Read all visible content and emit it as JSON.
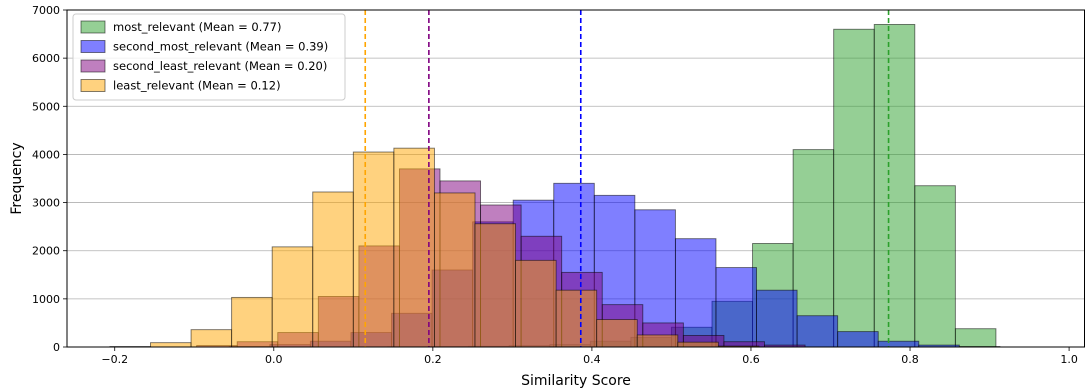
{
  "chart_data": {
    "type": "histogram",
    "title": "",
    "xlabel": "Similarity Score",
    "ylabel": "Frequency",
    "xlim": [
      -0.26,
      1.02
    ],
    "ylim": [
      0,
      7000
    ],
    "xticks": [
      -0.2,
      0.0,
      0.2,
      0.4,
      0.6,
      0.8,
      1.0
    ],
    "xtick_labels": [
      "−0.2",
      "0.0",
      "0.2",
      "0.4",
      "0.6",
      "0.8",
      "1.0"
    ],
    "yticks": [
      0,
      1000,
      2000,
      3000,
      4000,
      5000,
      6000,
      7000
    ],
    "ytick_labels": [
      "0",
      "1000",
      "2000",
      "3000",
      "4000",
      "5000",
      "6000",
      "7000"
    ],
    "grid": "horizontal",
    "legend_position": "top-left",
    "series": [
      {
        "name": "most_relevant (Mean = 0.77)",
        "color": "#2ca02c",
        "mean": 0.773,
        "bin_edges": [
          0.143,
          0.194,
          0.245,
          0.296,
          0.347,
          0.398,
          0.449,
          0.5,
          0.551,
          0.602,
          0.653,
          0.704,
          0.755,
          0.806,
          0.857,
          0.908,
          0.959
        ],
        "counts": [
          5,
          10,
          15,
          30,
          50,
          120,
          200,
          410,
          950,
          2150,
          4100,
          6600,
          6700,
          3350,
          380,
          0
        ]
      },
      {
        "name": "second_most_relevant (Mean = 0.39)",
        "color": "#0000ff",
        "mean": 0.386,
        "bin_edges": [
          -0.056,
          -0.005,
          0.046,
          0.097,
          0.148,
          0.199,
          0.25,
          0.301,
          0.352,
          0.403,
          0.454,
          0.505,
          0.556,
          0.607,
          0.658,
          0.709,
          0.76,
          0.811,
          0.862,
          0.913
        ],
        "counts": [
          10,
          50,
          120,
          300,
          700,
          1600,
          2600,
          3050,
          3400,
          3150,
          2850,
          2250,
          1650,
          1180,
          650,
          320,
          120,
          40,
          10
        ]
      },
      {
        "name": "second_least_relevant (Mean = 0.20)",
        "color": "#800080",
        "mean": 0.195,
        "bin_edges": [
          -0.097,
          -0.046,
          0.005,
          0.056,
          0.107,
          0.158,
          0.209,
          0.26,
          0.311,
          0.362,
          0.413,
          0.464,
          0.515,
          0.566,
          0.617,
          0.668
        ],
        "counts": [
          30,
          110,
          300,
          1050,
          2100,
          3700,
          3450,
          2950,
          2300,
          1550,
          880,
          500,
          240,
          110,
          40
        ]
      },
      {
        "name": "least_relevant (Mean = 0.12)",
        "color": "#ffa500",
        "mean": 0.115,
        "bin_edges": [
          -0.206,
          -0.155,
          -0.104,
          -0.053,
          -0.002,
          0.049,
          0.1,
          0.151,
          0.202,
          0.253,
          0.304,
          0.355,
          0.406,
          0.457,
          0.508,
          0.559,
          0.61
        ],
        "counts": [
          10,
          90,
          360,
          1030,
          2080,
          3220,
          4050,
          4130,
          3200,
          2560,
          1800,
          1180,
          570,
          250,
          100,
          20
        ]
      }
    ]
  }
}
